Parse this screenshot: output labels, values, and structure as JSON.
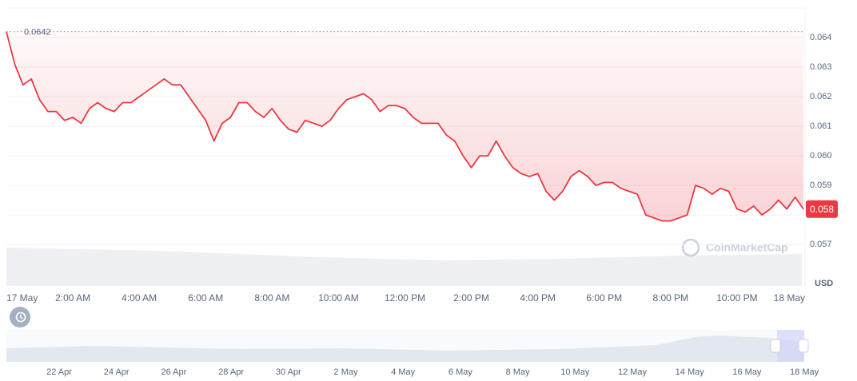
{
  "chart_data": {
    "type": "line",
    "x": [
      0,
      0.25,
      0.5,
      0.75,
      1,
      1.25,
      1.5,
      1.75,
      2,
      2.25,
      2.5,
      2.75,
      3,
      3.25,
      3.5,
      3.75,
      4,
      4.25,
      4.5,
      4.75,
      5,
      5.25,
      5.5,
      5.75,
      6,
      6.25,
      6.5,
      6.75,
      7,
      7.25,
      7.5,
      7.75,
      8,
      8.25,
      8.5,
      8.75,
      9,
      9.25,
      9.5,
      9.75,
      10,
      10.25,
      10.5,
      10.75,
      11,
      11.25,
      11.5,
      11.75,
      12,
      12.25,
      12.5,
      12.75,
      13,
      13.25,
      13.5,
      13.75,
      14,
      14.25,
      14.5,
      14.75,
      15,
      15.25,
      15.5,
      15.75,
      16,
      16.25,
      16.5,
      16.75,
      17,
      17.25,
      17.5,
      17.75,
      18,
      18.25,
      18.5,
      18.75,
      19,
      19.25,
      19.5,
      19.75,
      20,
      20.25,
      20.5,
      20.75,
      21,
      21.25,
      21.5,
      21.75,
      22,
      22.25,
      22.5,
      22.75,
      23,
      23.25,
      23.5,
      23.75,
      24
    ],
    "series": [
      {
        "name": "USD",
        "color": "#ea3943",
        "values": [
          0.0642,
          0.0631,
          0.0624,
          0.0626,
          0.0619,
          0.0615,
          0.0615,
          0.0612,
          0.0613,
          0.0611,
          0.0616,
          0.0618,
          0.0616,
          0.0615,
          0.0618,
          0.0618,
          0.062,
          0.0622,
          0.0624,
          0.0626,
          0.0624,
          0.0624,
          0.062,
          0.0616,
          0.0612,
          0.0605,
          0.0611,
          0.0613,
          0.0618,
          0.0618,
          0.0615,
          0.0613,
          0.0616,
          0.0612,
          0.0609,
          0.0608,
          0.0612,
          0.0611,
          0.061,
          0.0612,
          0.0616,
          0.0619,
          0.062,
          0.0621,
          0.0619,
          0.0615,
          0.0617,
          0.0617,
          0.0616,
          0.0613,
          0.0611,
          0.0611,
          0.0611,
          0.0607,
          0.0605,
          0.06,
          0.0596,
          0.06,
          0.06,
          0.0605,
          0.06,
          0.0596,
          0.0594,
          0.0593,
          0.0594,
          0.0588,
          0.0585,
          0.0588,
          0.0593,
          0.0595,
          0.0593,
          0.059,
          0.0591,
          0.0591,
          0.0589,
          0.0588,
          0.0587,
          0.058,
          0.0579,
          0.0578,
          0.0578,
          0.0579,
          0.058,
          0.059,
          0.0589,
          0.0587,
          0.0589,
          0.0588,
          0.0582,
          0.0581,
          0.0583,
          0.058,
          0.0582,
          0.0585,
          0.0582,
          0.0586,
          0.0582
        ]
      }
    ],
    "xlim": [
      0,
      24
    ],
    "xticks": [
      {
        "value": 0,
        "label": "17 May"
      },
      {
        "value": 2,
        "label": "2:00 AM"
      },
      {
        "value": 4,
        "label": "4:00 AM"
      },
      {
        "value": 6,
        "label": "6:00 AM"
      },
      {
        "value": 8,
        "label": "8:00 AM"
      },
      {
        "value": 10,
        "label": "10:00 AM"
      },
      {
        "value": 12,
        "label": "12:00 PM"
      },
      {
        "value": 14,
        "label": "2:00 PM"
      },
      {
        "value": 16,
        "label": "4:00 PM"
      },
      {
        "value": 18,
        "label": "6:00 PM"
      },
      {
        "value": 20,
        "label": "8:00 PM"
      },
      {
        "value": 22,
        "label": "10:00 PM"
      },
      {
        "value": 24,
        "label": "18 May"
      }
    ],
    "ylim": [
      0.0556,
      0.065
    ],
    "yticks": [
      0.057,
      0.058,
      0.059,
      {
        "value": 0.06,
        "label": "0.060"
      },
      0.061,
      0.062,
      0.063,
      0.064
    ],
    "y_label": "USD",
    "grid": true,
    "reference_line": 0.0642,
    "last_price": {
      "value": 0.0582,
      "label": "0.058"
    },
    "watermark": "CoinMarketCap"
  },
  "navigator": {
    "labels": [
      "22 Apr",
      "24 Apr",
      "26 Apr",
      "28 Apr",
      "30 Apr",
      "2 May",
      "4 May",
      "6 May",
      "8 May",
      "10 May",
      "12 May",
      "14 May",
      "16 May",
      "18 May"
    ]
  }
}
